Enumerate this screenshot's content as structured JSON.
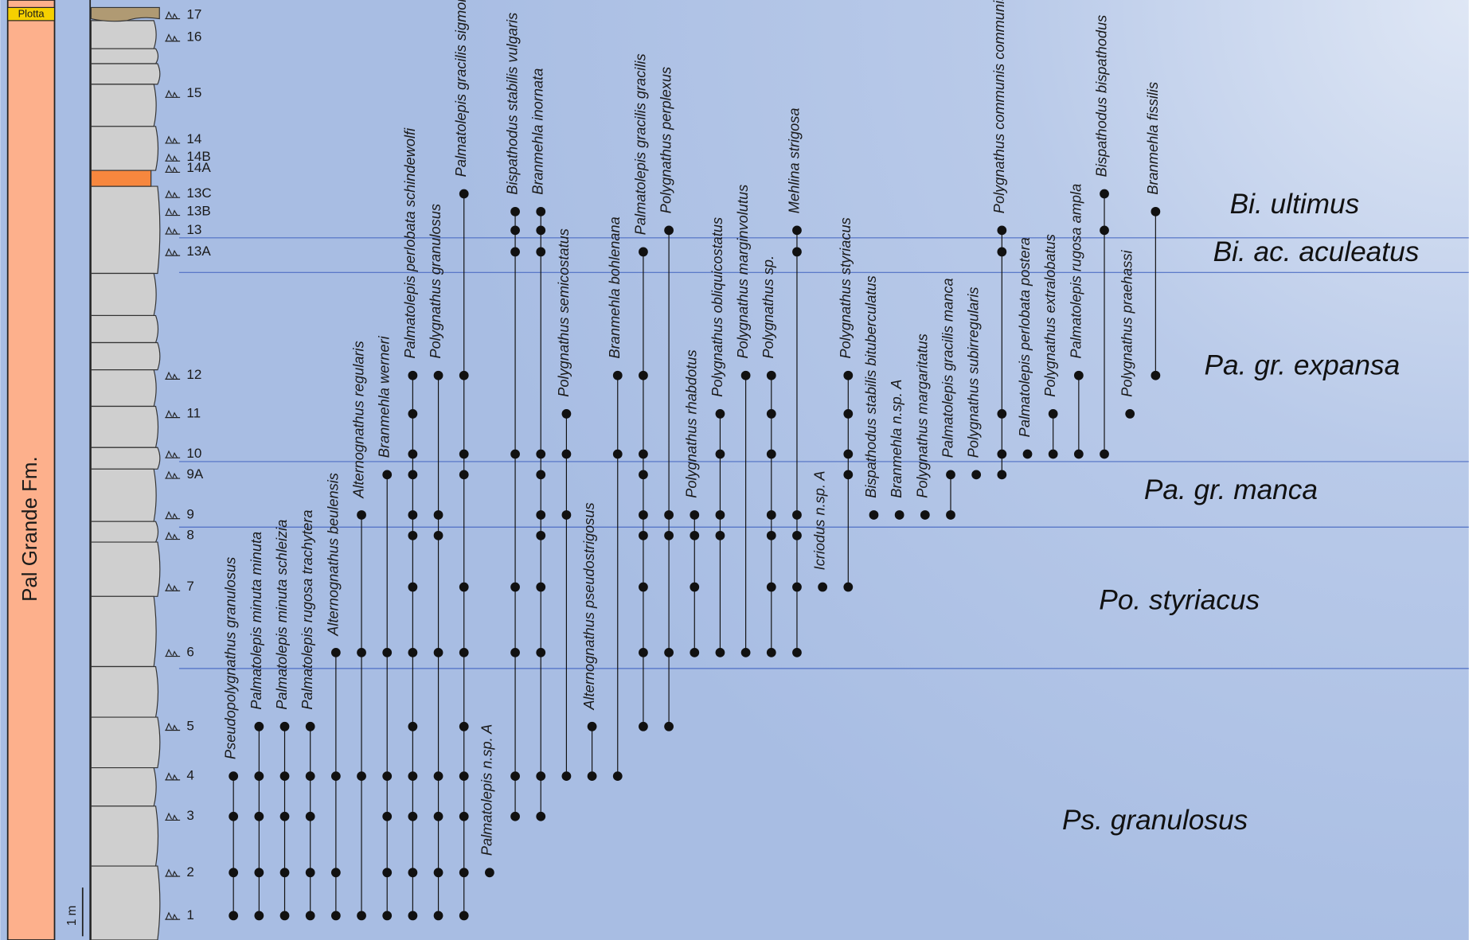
{
  "unit_label": "Plotta",
  "formation": "Pal Grande Fm.",
  "scale_label": "1 m",
  "samples": [
    "1",
    "2",
    "3",
    "4",
    "5",
    "6",
    "7",
    "8",
    "9",
    "9A",
    "10",
    "11",
    "12",
    "13A",
    "13",
    "13B",
    "13C",
    "14A",
    "14B",
    "14",
    "15",
    "16",
    "17"
  ],
  "taxa": [
    {
      "name": "Pseudopolygnathus granulosus",
      "samples": [
        "1",
        "2",
        "3",
        "4"
      ]
    },
    {
      "name": "Palmatolepis minuta minuta",
      "samples": [
        "1",
        "2",
        "3",
        "4",
        "5"
      ]
    },
    {
      "name": "Palmatolepis minuta schleizia",
      "samples": [
        "1",
        "2",
        "3",
        "4",
        "5"
      ]
    },
    {
      "name": "Palmatolepis rugosa trachytera",
      "samples": [
        "1",
        "2",
        "3",
        "4",
        "5"
      ]
    },
    {
      "name": "Alternognathus beulensis",
      "samples": [
        "1",
        "2",
        "4",
        "6"
      ]
    },
    {
      "name": "Alternognathus regularis",
      "samples": [
        "1",
        "4",
        "6",
        "9"
      ]
    },
    {
      "name": "Branmehla werneri",
      "samples": [
        "1",
        "2",
        "3",
        "4",
        "6",
        "9A"
      ]
    },
    {
      "name": "Palmatolepis perlobata schindewolfi",
      "samples": [
        "1",
        "2",
        "3",
        "4",
        "5",
        "6",
        "7",
        "8",
        "9",
        "9A",
        "10",
        "11",
        "12"
      ]
    },
    {
      "name": "Polygnathus granulosus",
      "samples": [
        "1",
        "2",
        "3",
        "4",
        "6",
        "8",
        "9",
        "12"
      ]
    },
    {
      "name": "Palmatolepis gracilis sigmoidalis",
      "samples": [
        "1",
        "2",
        "3",
        "4",
        "5",
        "6",
        "7",
        "9A",
        "10",
        "12",
        "13C"
      ]
    },
    {
      "name": "Palmatolepis n.sp. A",
      "samples": [
        "2"
      ]
    },
    {
      "name": "Bispathodus stabilis vulgaris",
      "samples": [
        "3",
        "4",
        "6",
        "7",
        "10",
        "13A",
        "13",
        "13B"
      ]
    },
    {
      "name": "Branmehla inornata",
      "samples": [
        "3",
        "4",
        "6",
        "7",
        "8",
        "9",
        "9A",
        "10",
        "13A",
        "13",
        "13B"
      ]
    },
    {
      "name": "Polygnathus semicostatus",
      "samples": [
        "4",
        "9",
        "10",
        "11"
      ]
    },
    {
      "name": "Alternognathus pseudostrigosus",
      "samples": [
        "4",
        "5"
      ]
    },
    {
      "name": "Branmehla bohlenana",
      "samples": [
        "4",
        "10",
        "12"
      ]
    },
    {
      "name": "Palmatolepis gracilis gracilis",
      "samples": [
        "5",
        "6",
        "7",
        "8",
        "9",
        "9A",
        "10",
        "12",
        "13A"
      ]
    },
    {
      "name": "Polygnathus perplexus",
      "samples": [
        "5",
        "6",
        "8",
        "9",
        "13"
      ]
    },
    {
      "name": "Polygnathus rhabdotus",
      "samples": [
        "6",
        "7",
        "8",
        "9"
      ]
    },
    {
      "name": "Polygnathus obliquicostatus",
      "samples": [
        "6",
        "8",
        "9",
        "10",
        "11"
      ]
    },
    {
      "name": "Polygnathus marginvolutus",
      "samples": [
        "6",
        "12"
      ]
    },
    {
      "name": "Polygnathus sp.",
      "samples": [
        "6",
        "7",
        "8",
        "9",
        "10",
        "11",
        "12"
      ]
    },
    {
      "name": "Mehlina strigosa",
      "samples": [
        "6",
        "7",
        "8",
        "9",
        "13A",
        "13"
      ]
    },
    {
      "name": "Icriodus n.sp. A",
      "samples": [
        "7"
      ]
    },
    {
      "name": "Polygnathus styriacus",
      "samples": [
        "7",
        "9A",
        "10",
        "11",
        "12"
      ]
    },
    {
      "name": "Bispathodus stabilis bituberculatus",
      "samples": [
        "9"
      ]
    },
    {
      "name": "Branmehla n.sp. A",
      "samples": [
        "9"
      ]
    },
    {
      "name": "Polygnathus margaritatus",
      "samples": [
        "9"
      ]
    },
    {
      "name": "Palmatolepis gracilis manca",
      "samples": [
        "9",
        "9A"
      ]
    },
    {
      "name": "Polygnathus subirregularis",
      "samples": [
        "9A"
      ]
    },
    {
      "name": "Polygnathus communis communis",
      "samples": [
        "9A",
        "10",
        "11",
        "13A",
        "13"
      ]
    },
    {
      "name": "Palmatolepis perlobata postera",
      "samples": [
        "10"
      ]
    },
    {
      "name": "Polygnathus extralobatus",
      "samples": [
        "10",
        "11"
      ]
    },
    {
      "name": "Palmatolepis rugosa ampla",
      "samples": [
        "10",
        "12"
      ]
    },
    {
      "name": "Bispathodus bispathodus",
      "samples": [
        "10",
        "13",
        "13C"
      ]
    },
    {
      "name": "Polygnathus praehassi",
      "samples": [
        "11"
      ]
    },
    {
      "name": "Branmehla fissilis",
      "samples": [
        "12",
        "13B"
      ]
    }
  ],
  "zones": [
    "Bi. ultimus",
    "Bi. ac. aculeatus",
    "Pa. gr. expansa",
    "Pa. gr. manca",
    "Po. styriacus",
    "Ps. granulosus"
  ]
}
